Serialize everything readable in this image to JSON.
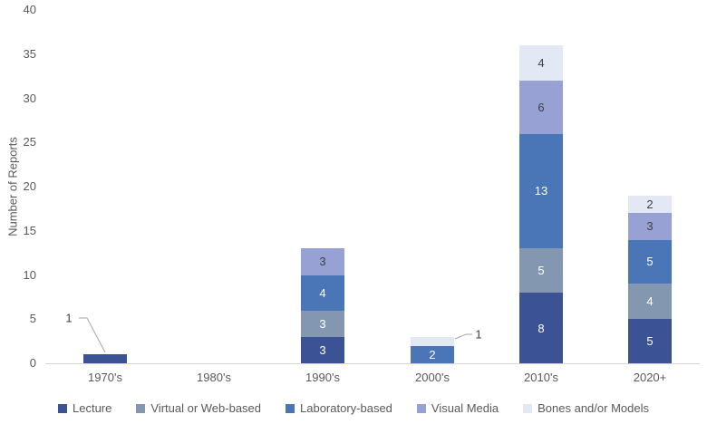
{
  "chart_data": {
    "type": "bar",
    "stacked": true,
    "title": "",
    "xlabel": "",
    "ylabel": "Number of Reports",
    "ylim": [
      0,
      40
    ],
    "ytick_step": 5,
    "grid": false,
    "legend_position": "bottom",
    "categories": [
      "1970's",
      "1980's",
      "1990's",
      "2000's",
      "2010's",
      "2020+"
    ],
    "series": [
      {
        "name": "Lecture",
        "color": "#3b5394",
        "label_color": "#ffffff",
        "values": [
          1,
          0,
          3,
          0,
          8,
          5
        ]
      },
      {
        "name": "Virtual or Web-based",
        "color": "#8497b0",
        "label_color": "#ffffff",
        "values": [
          0,
          0,
          3,
          0,
          5,
          4
        ]
      },
      {
        "name": "Laboratory-based",
        "color": "#4a76b8",
        "label_color": "#ffffff",
        "values": [
          0,
          0,
          4,
          2,
          13,
          5
        ]
      },
      {
        "name": "Visual Media",
        "color": "#97a1d4",
        "label_color": "#404040",
        "values": [
          0,
          0,
          3,
          0,
          6,
          3
        ]
      },
      {
        "name": "Bones and/or Models",
        "color": "#e2e9f5",
        "label_color": "#404040",
        "values": [
          0,
          0,
          0,
          1,
          4,
          2
        ]
      }
    ],
    "totals": [
      1,
      0,
      13,
      3,
      36,
      19
    ],
    "callouts": [
      {
        "text": "1",
        "category": "1970's",
        "series": "Lecture"
      },
      {
        "text": "1",
        "category": "2000's",
        "series": "Bones and/or Models"
      }
    ],
    "colors": {
      "axis_text": "#595959",
      "axis_line": "#d6d6d6",
      "leader_line": "#a6a6a6",
      "callout_text": "#404040"
    }
  }
}
